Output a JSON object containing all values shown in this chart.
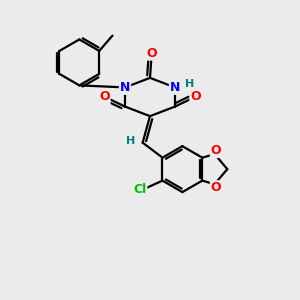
{
  "bg_color": "#ebebeb",
  "atom_colors": {
    "N": "#0000ff",
    "O": "#ff0000",
    "Cl": "#00bb00",
    "C": "#000000",
    "H": "#008080"
  },
  "bond_color": "#000000",
  "figsize": [
    3.0,
    3.0
  ],
  "dpi": 100
}
